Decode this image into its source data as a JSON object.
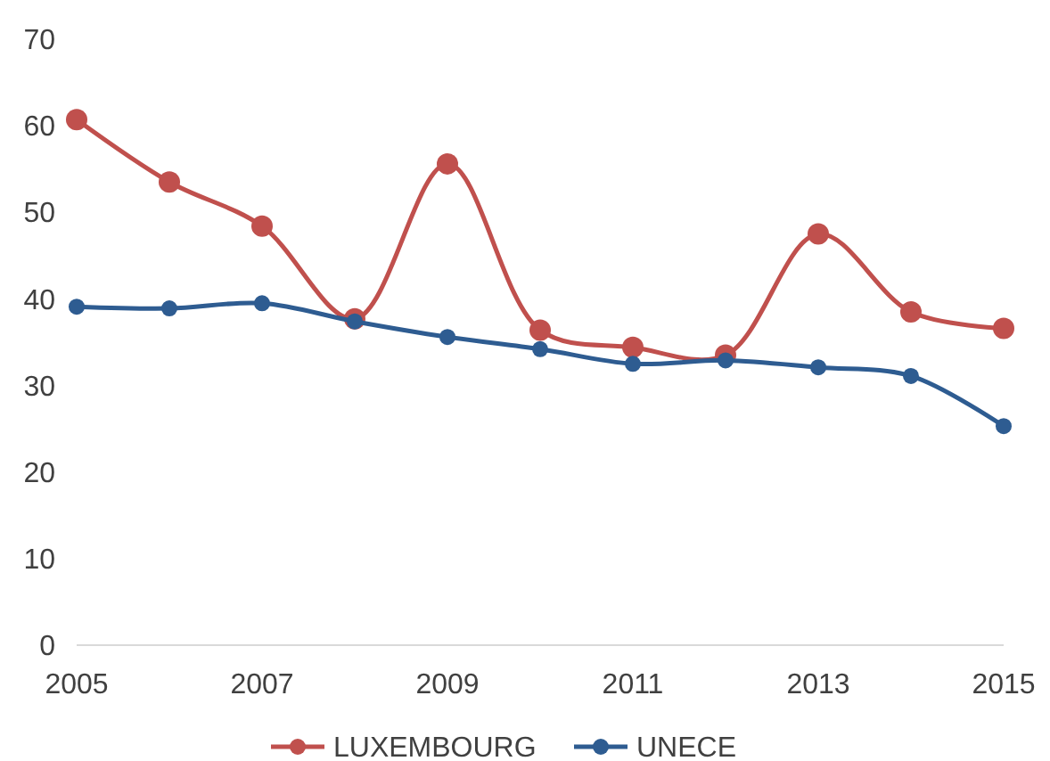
{
  "chart_data": {
    "type": "line",
    "x": [
      2005,
      2006,
      2007,
      2008,
      2009,
      2010,
      2011,
      2012,
      2013,
      2014,
      2015
    ],
    "series": [
      {
        "name": "LUXEMBOURG",
        "color": "#c0504d",
        "values": [
          60.7,
          53.5,
          48.4,
          37.7,
          55.6,
          36.4,
          34.4,
          33.5,
          47.5,
          38.5,
          36.6
        ]
      },
      {
        "name": "UNECE",
        "color": "#2e5c91",
        "values": [
          39.1,
          38.9,
          39.5,
          37.4,
          35.6,
          34.2,
          32.5,
          32.9,
          32.1,
          31.1,
          25.3
        ]
      }
    ],
    "xlim": [
      2005,
      2015
    ],
    "xticks": [
      2005,
      2007,
      2009,
      2011,
      2013,
      2015
    ],
    "ylim": [
      0,
      70
    ],
    "yticks": [
      0,
      10,
      20,
      30,
      40,
      50,
      60,
      70
    ],
    "grid": false,
    "legend": "bottom",
    "marker": "circle",
    "line_style": "solid"
  }
}
